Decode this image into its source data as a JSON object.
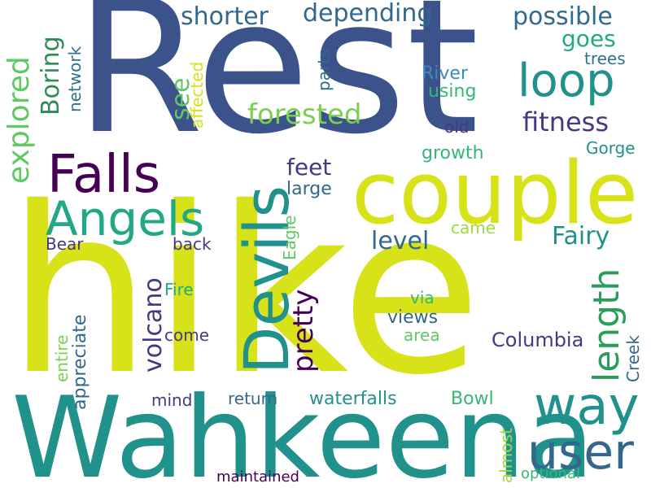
{
  "words": [
    {
      "text": "Rest",
      "color": "#3b528b"
    },
    {
      "text": "hike",
      "color": "#d8e219"
    },
    {
      "text": "Wahkeena",
      "color": "#21918c"
    },
    {
      "text": "couple",
      "color": "#d8e219"
    },
    {
      "text": "Devils",
      "color": "#21918c"
    },
    {
      "text": "Falls",
      "color": "#440154"
    },
    {
      "text": "Angels",
      "color": "#22a884"
    },
    {
      "text": "way",
      "color": "#21918c"
    },
    {
      "text": "user",
      "color": "#31688e"
    },
    {
      "text": "loop",
      "color": "#21918c"
    },
    {
      "text": "length",
      "color": "#2a9d5a"
    },
    {
      "text": "explored",
      "color": "#5ec962"
    },
    {
      "text": "Boring",
      "color": "#2e8b57"
    },
    {
      "text": "shorter",
      "color": "#31688e"
    },
    {
      "text": "depending",
      "color": "#31688e"
    },
    {
      "text": "possible",
      "color": "#31688e"
    },
    {
      "text": "goes",
      "color": "#22a884"
    },
    {
      "text": "forested",
      "color": "#7ad151"
    },
    {
      "text": "fitness",
      "color": "#443983"
    },
    {
      "text": "see",
      "color": "#5ec962"
    },
    {
      "text": "feet",
      "color": "#443983"
    },
    {
      "text": "large",
      "color": "#31688e"
    },
    {
      "text": "pretty",
      "color": "#440154"
    },
    {
      "text": "level",
      "color": "#31688e"
    },
    {
      "text": "Fairy",
      "color": "#21918c"
    },
    {
      "text": "volcano",
      "color": "#443983"
    },
    {
      "text": "network",
      "color": "#2c728e"
    },
    {
      "text": "parts",
      "color": "#31688e"
    },
    {
      "text": "affected",
      "color": "#d8e219"
    },
    {
      "text": "River",
      "color": "#3b8bc0"
    },
    {
      "text": "using",
      "color": "#35b779"
    },
    {
      "text": "trees",
      "color": "#2c728e"
    },
    {
      "text": "old",
      "color": "#443983"
    },
    {
      "text": "growth",
      "color": "#35b779"
    },
    {
      "text": "Gorge",
      "color": "#21918c"
    },
    {
      "text": "Eagle",
      "color": "#5ec962"
    },
    {
      "text": "came",
      "color": "#a0da39"
    },
    {
      "text": "back",
      "color": "#443983"
    },
    {
      "text": "Bear",
      "color": "#443983"
    },
    {
      "text": "Fire",
      "color": "#22a884"
    },
    {
      "text": "via",
      "color": "#35b779"
    },
    {
      "text": "views",
      "color": "#31688e"
    },
    {
      "text": "area",
      "color": "#5ec962"
    },
    {
      "text": "appreciate",
      "color": "#31688e"
    },
    {
      "text": "entire",
      "color": "#7ad151"
    },
    {
      "text": "come",
      "color": "#443983"
    },
    {
      "text": "Columbia",
      "color": "#443983"
    },
    {
      "text": "Creek",
      "color": "#31688e"
    },
    {
      "text": "mind",
      "color": "#443983"
    },
    {
      "text": "return",
      "color": "#31688e"
    },
    {
      "text": "waterfalls",
      "color": "#21918c"
    },
    {
      "text": "Bowl",
      "color": "#35b779"
    },
    {
      "text": "almost",
      "color": "#a0da39"
    },
    {
      "text": "maintained",
      "color": "#440154"
    },
    {
      "text": "optional",
      "color": "#35b779"
    }
  ]
}
